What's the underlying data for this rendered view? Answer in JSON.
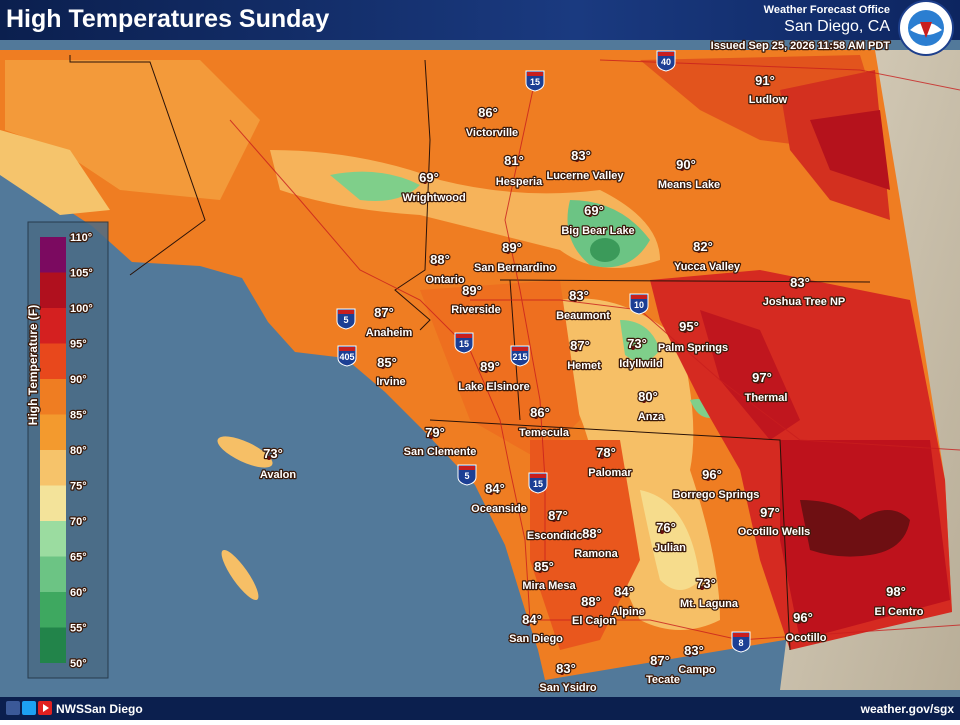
{
  "header": {
    "title": "High Temperatures Sunday",
    "office": "Weather Forecast Office",
    "location": "San Diego, CA",
    "issued": "Issued Sep 25, 2026 11:58 AM PDT"
  },
  "legend": {
    "title": "High Temperature (F)",
    "ticks": [
      "110°",
      "105°",
      "100°",
      "95°",
      "90°",
      "85°",
      "80°",
      "75°",
      "70°",
      "65°",
      "60°",
      "55°",
      "50°"
    ]
  },
  "cities": [
    {
      "name": "Ludlow",
      "temp": "91°"
    },
    {
      "name": "Victorville",
      "temp": "86°"
    },
    {
      "name": "Hesperia",
      "temp": "81°"
    },
    {
      "name": "Lucerne Valley",
      "temp": "83°"
    },
    {
      "name": "Means Lake",
      "temp": "90°"
    },
    {
      "name": "Wrightwood",
      "temp": "69°"
    },
    {
      "name": "Big Bear Lake",
      "temp": "69°"
    },
    {
      "name": "Yucca Valley",
      "temp": "82°"
    },
    {
      "name": "Joshua Tree NP",
      "temp": "83°"
    },
    {
      "name": "Ontario",
      "temp": "88°"
    },
    {
      "name": "San Bernardino",
      "temp": "89°"
    },
    {
      "name": "Riverside",
      "temp": "89°"
    },
    {
      "name": "Beaumont",
      "temp": "83°"
    },
    {
      "name": "Anaheim",
      "temp": "87°"
    },
    {
      "name": "Palm Springs",
      "temp": "95°"
    },
    {
      "name": "Idyllwild",
      "temp": "73°"
    },
    {
      "name": "Hemet",
      "temp": "87°"
    },
    {
      "name": "Irvine",
      "temp": "85°"
    },
    {
      "name": "Lake Elsinore",
      "temp": "89°"
    },
    {
      "name": "Thermal",
      "temp": "97°"
    },
    {
      "name": "Anza",
      "temp": "80°"
    },
    {
      "name": "Temecula",
      "temp": "86°"
    },
    {
      "name": "San Clemente",
      "temp": "79°"
    },
    {
      "name": "Avalon",
      "temp": "73°"
    },
    {
      "name": "Palomar",
      "temp": "78°"
    },
    {
      "name": "Borrego Springs",
      "temp": "96°"
    },
    {
      "name": "Oceanside",
      "temp": "84°"
    },
    {
      "name": "Ocotillo Wells",
      "temp": "97°"
    },
    {
      "name": "Escondido",
      "temp": "87°"
    },
    {
      "name": "Ramona",
      "temp": "88°"
    },
    {
      "name": "Julian",
      "temp": "76°"
    },
    {
      "name": "Mira Mesa",
      "temp": "85°"
    },
    {
      "name": "Mt. Laguna",
      "temp": "73°"
    },
    {
      "name": "Alpine",
      "temp": "84°"
    },
    {
      "name": "El Cajon",
      "temp": "88°"
    },
    {
      "name": "El Centro",
      "temp": "98°"
    },
    {
      "name": "San Diego",
      "temp": "84°"
    },
    {
      "name": "Ocotillo",
      "temp": "96°"
    },
    {
      "name": "Campo",
      "temp": "83°"
    },
    {
      "name": "Tecate",
      "temp": "87°"
    },
    {
      "name": "San Ysidro",
      "temp": "83°"
    }
  ],
  "highways": [
    "40",
    "15",
    "5",
    "405",
    "15",
    "215",
    "10",
    "5",
    "15",
    "8"
  ],
  "footer": {
    "handle": "NWSSan Diego",
    "url": "weather.gov/sgx"
  }
}
